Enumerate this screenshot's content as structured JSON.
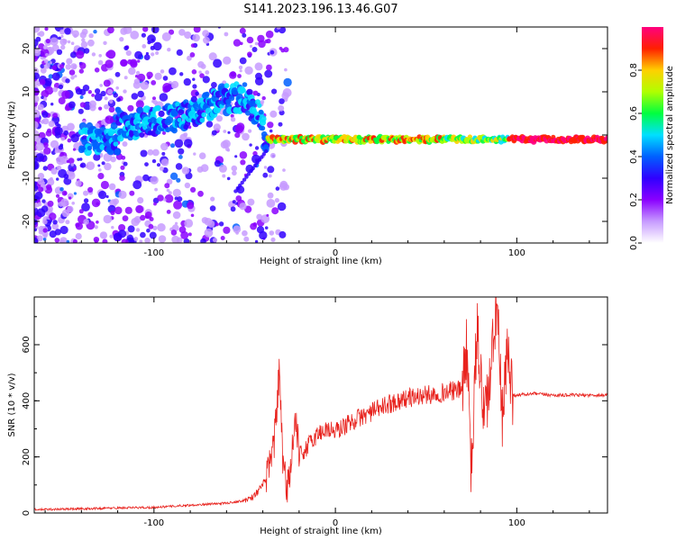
{
  "chart_data": [
    {
      "type": "heatmap",
      "title": "S141.2023.196.13.46.G07",
      "xlabel": "Height of straight line (km)",
      "ylabel": "Frequency (Hz)",
      "xlim": [
        -166,
        150
      ],
      "ylim": [
        -25,
        25
      ],
      "x_ticks": [
        "-100",
        "0",
        "100"
      ],
      "y_ticks": [
        "-20",
        "-10",
        "0",
        "10",
        "20"
      ],
      "colorbar": {
        "label": "Normalized spectral amplitude",
        "range": [
          0,
          1
        ],
        "ticks": [
          "0.0",
          "0.2",
          "0.4",
          "0.6",
          "0.8"
        ],
        "colors": [
          "#ffffff",
          "#c79bff",
          "#8a00ff",
          "#3000ff",
          "#0060ff",
          "#00e0ff",
          "#00ff40",
          "#b0ff00",
          "#ffd000",
          "#ff2000",
          "#ff007f"
        ]
      },
      "ridge": [
        {
          "x": -120,
          "y": 2
        },
        {
          "x": -100,
          "y": 3
        },
        {
          "x": -80,
          "y": 5
        },
        {
          "x": -65,
          "y": 8
        },
        {
          "x": -50,
          "y": 9
        },
        {
          "x": -42,
          "y": 4
        },
        {
          "x": -38,
          "y": -1
        },
        {
          "x": -30,
          "y": -1
        },
        {
          "x": 0,
          "y": -1
        },
        {
          "x": 50,
          "y": -1
        },
        {
          "x": 100,
          "y": -1
        },
        {
          "x": 150,
          "y": -1
        }
      ]
    },
    {
      "type": "line",
      "xlabel": "Height of straight line (km)",
      "ylabel": "SNR (10 * v/v)",
      "xlim": [
        -166,
        150
      ],
      "ylim": [
        0,
        770
      ],
      "x_ticks": [
        "-100",
        "0",
        "100"
      ],
      "y_ticks": [
        "0",
        "200",
        "400",
        "600"
      ],
      "series": [
        {
          "color": "#e8231e",
          "points": [
            [
              -166,
              12
            ],
            [
              -140,
              15
            ],
            [
              -120,
              18
            ],
            [
              -100,
              20
            ],
            [
              -80,
              28
            ],
            [
              -60,
              35
            ],
            [
              -50,
              45
            ],
            [
              -45,
              60
            ],
            [
              -40,
              100
            ],
            [
              -36,
              160
            ],
            [
              -33,
              300
            ],
            [
              -31,
              500
            ],
            [
              -29,
              180
            ],
            [
              -27,
              80
            ],
            [
              -25,
              150
            ],
            [
              -22,
              330
            ],
            [
              -20,
              200
            ],
            [
              -15,
              240
            ],
            [
              -10,
              280
            ],
            [
              -5,
              300
            ],
            [
              0,
              290
            ],
            [
              10,
              330
            ],
            [
              20,
              360
            ],
            [
              30,
              390
            ],
            [
              40,
              410
            ],
            [
              50,
              420
            ],
            [
              60,
              430
            ],
            [
              70,
              440
            ],
            [
              72,
              600
            ],
            [
              75,
              150
            ],
            [
              78,
              650
            ],
            [
              82,
              350
            ],
            [
              86,
              500
            ],
            [
              89,
              770
            ],
            [
              92,
              300
            ],
            [
              95,
              600
            ],
            [
              98,
              420
            ],
            [
              110,
              425
            ],
            [
              120,
              420
            ],
            [
              130,
              420
            ],
            [
              140,
              420
            ],
            [
              150,
              420
            ]
          ]
        }
      ]
    }
  ]
}
